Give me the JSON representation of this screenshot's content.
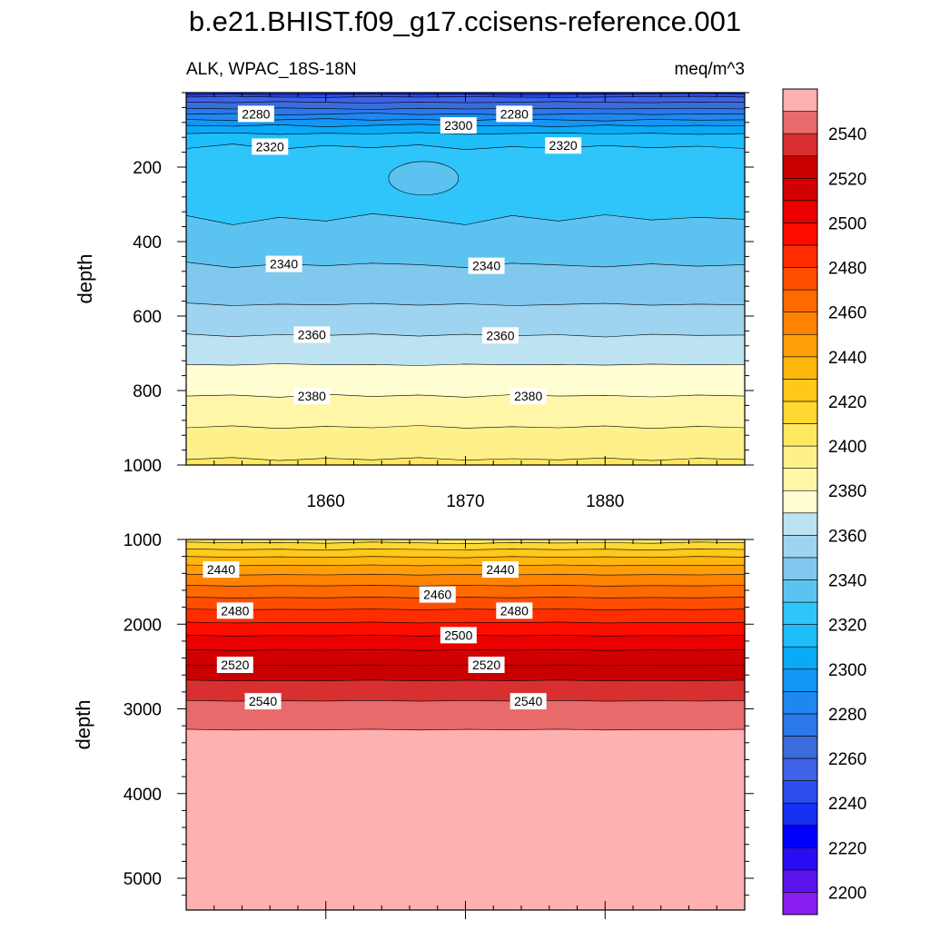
{
  "chart_data": {
    "type": "heatmap",
    "subtype": "filled-contour time-depth section (two panels, shared colorbar)",
    "title": "b.e21.BHIST.f09_g17.ccisens-reference.001",
    "left_subtitle": "ALK, WPAC_18S-18N",
    "right_subtitle": "meq/m^3",
    "ylabel": "depth",
    "x_range": [
      1850,
      1890
    ],
    "x_ticks": [
      1860,
      1870,
      1880
    ],
    "x_minor_step": 2,
    "panels": [
      {
        "name": "upper",
        "ylim": [
          0,
          1000
        ],
        "y_ticks": [
          200,
          400,
          600,
          800,
          1000
        ],
        "y_tick_labels": [
          "200",
          "400",
          "600",
          "800",
          "1000"
        ],
        "y_minor_step": 40,
        "x_tick_labels": [
          "1860",
          "1870",
          "1880"
        ],
        "contours": [
          {
            "level": 2240,
            "depths": [
              6,
              4,
              6,
              5,
              3,
              5,
              4,
              6,
              5,
              4,
              3,
              2,
              3
            ]
          },
          {
            "level": 2250,
            "depths": [
              12,
              10,
              12,
              13,
              11,
              12,
              11,
              12,
              13,
              12,
              11,
              10,
              12
            ]
          },
          {
            "level": 2260,
            "depths": [
              25,
              27,
              24,
              26,
              28,
              25,
              27,
              26,
              24,
              26,
              27,
              25,
              26
            ]
          },
          {
            "level": 2270,
            "depths": [
              42,
              44,
              41,
              43,
              45,
              42,
              44,
              43,
              42,
              44,
              43,
              42,
              44
            ]
          },
          {
            "level": 2280,
            "depths": [
              58,
              56,
              60,
              58,
              55,
              59,
              57,
              60,
              58,
              56,
              59,
              57,
              58
            ]
          },
          {
            "level": 2290,
            "depths": [
              72,
              75,
              73,
              70,
              74,
              72,
              75,
              71,
              73,
              76,
              72,
              74,
              73
            ]
          },
          {
            "level": 2300,
            "depths": [
              88,
              90,
              86,
              92,
              88,
              85,
              90,
              88,
              92,
              87,
              90,
              88,
              89
            ]
          },
          {
            "level": 2310,
            "depths": [
              110,
              108,
              112,
              109,
              111,
              107,
              112,
              110,
              108,
              111,
              109,
              112,
              110
            ]
          },
          {
            "level": 2320,
            "depths": [
              150,
              138,
              152,
              142,
              148,
              140,
              153,
              145,
              150,
              142,
              148,
              144,
              150
            ]
          },
          {
            "level": 2330,
            "depths": [
              330,
              355,
              335,
              345,
              325,
              338,
              355,
              330,
              345,
              328,
              342,
              335,
              340
            ]
          },
          {
            "level": 2340,
            "depths": [
              455,
              470,
              460,
              465,
              458,
              462,
              470,
              458,
              463,
              468,
              460,
              466,
              462
            ]
          },
          {
            "level": 2350,
            "depths": [
              565,
              572,
              568,
              570,
              566,
              571,
              567,
              572,
              569,
              566,
              571,
              568,
              570
            ]
          },
          {
            "level": 2360,
            "depths": [
              648,
              655,
              650,
              652,
              648,
              654,
              649,
              653,
              650,
              656,
              649,
              652,
              651
            ]
          },
          {
            "level": 2370,
            "depths": [
              730,
              732,
              728,
              731,
              730,
              733,
              729,
              731,
              730,
              732,
              729,
              731,
              730
            ]
          },
          {
            "level": 2380,
            "depths": [
              815,
              812,
              818,
              810,
              816,
              812,
              818,
              811,
              815,
              813,
              817,
              812,
              815
            ]
          },
          {
            "level": 2390,
            "depths": [
              900,
              895,
              902,
              896,
              900,
              894,
              901,
              897,
              900,
              895,
              902,
              896,
              900
            ]
          },
          {
            "level": 2400,
            "depths": [
              985,
              980,
              988,
              982,
              986,
              980,
              987,
              983,
              986,
              981,
              988,
              982,
              985
            ]
          }
        ],
        "bubble": {
          "level_inside": 2330,
          "x_center": 1867,
          "depth_center": 230,
          "x_halfwidth": 2.5,
          "depth_halfheight": 45
        },
        "contour_labels": [
          {
            "text": "2280",
            "x": 1855,
            "depth": 57
          },
          {
            "text": "2300",
            "x": 1869.5,
            "depth": 88
          },
          {
            "text": "2280",
            "x": 1873.5,
            "depth": 57
          },
          {
            "text": "2320",
            "x": 1856,
            "depth": 145
          },
          {
            "text": "2320",
            "x": 1877,
            "depth": 142
          },
          {
            "text": "2340",
            "x": 1857,
            "depth": 460
          },
          {
            "text": "2340",
            "x": 1871.5,
            "depth": 465
          },
          {
            "text": "2360",
            "x": 1859,
            "depth": 650
          },
          {
            "text": "2360",
            "x": 1872.5,
            "depth": 652
          },
          {
            "text": "2380",
            "x": 1859,
            "depth": 815
          },
          {
            "text": "2380",
            "x": 1874.5,
            "depth": 815
          }
        ]
      },
      {
        "name": "lower",
        "ylim": [
          1000,
          5375
        ],
        "y_ticks": [
          1000,
          2000,
          3000,
          4000,
          5000
        ],
        "y_tick_labels": [
          "1000",
          "2000",
          "3000",
          "4000",
          "5000"
        ],
        "y_minor_step": 200,
        "contours": [
          {
            "level": 2410,
            "depths": [
              1030,
              1040,
              1035,
              1045,
              1030,
              1040,
              1050,
              1035,
              1042,
              1038,
              1045,
              1030,
              1040
            ]
          },
          {
            "level": 2420,
            "depths": [
              1110,
              1120,
              1115,
              1125,
              1110,
              1118,
              1122,
              1112,
              1120,
              1115,
              1125,
              1110,
              1118
            ]
          },
          {
            "level": 2430,
            "depths": [
              1200,
              1210,
              1205,
              1212,
              1200,
              1208,
              1215,
              1202,
              1210,
              1205,
              1212,
              1200,
              1208
            ]
          },
          {
            "level": 2440,
            "depths": [
              1300,
              1310,
              1305,
              1308,
              1300,
              1310,
              1302,
              1308,
              1300,
              1310,
              1305,
              1308,
              1302
            ]
          },
          {
            "level": 2450,
            "depths": [
              1410,
              1420,
              1415,
              1418,
              1410,
              1420,
              1412,
              1418,
              1410,
              1420,
              1415,
              1418,
              1412
            ]
          },
          {
            "level": 2460,
            "depths": [
              1540,
              1550,
              1545,
              1548,
              1540,
              1550,
              1542,
              1548,
              1540,
              1550,
              1545,
              1548,
              1542
            ]
          },
          {
            "level": 2470,
            "depths": [
              1680,
              1690,
              1685,
              1688,
              1680,
              1690,
              1682,
              1688,
              1680,
              1690,
              1685,
              1688,
              1682
            ]
          },
          {
            "level": 2480,
            "depths": [
              1820,
              1830,
              1825,
              1828,
              1820,
              1830,
              1822,
              1828,
              1820,
              1830,
              1825,
              1828,
              1822
            ]
          },
          {
            "level": 2490,
            "depths": [
              1975,
              1985,
              1980,
              1982,
              1975,
              1985,
              1978,
              1982,
              1975,
              1985,
              1980,
              1982,
              1978
            ]
          },
          {
            "level": 2500,
            "depths": [
              2130,
              2140,
              2135,
              2138,
              2130,
              2140,
              2132,
              2138,
              2130,
              2140,
              2135,
              2138,
              2132
            ]
          },
          {
            "level": 2510,
            "depths": [
              2300,
              2310,
              2305,
              2308,
              2300,
              2310,
              2302,
              2308,
              2300,
              2310,
              2305,
              2308,
              2302
            ]
          },
          {
            "level": 2520,
            "depths": [
              2480,
              2490,
              2485,
              2488,
              2480,
              2490,
              2482,
              2488,
              2480,
              2490,
              2485,
              2488,
              2482
            ]
          },
          {
            "level": 2530,
            "depths": [
              2660,
              2670,
              2665,
              2668,
              2660,
              2670,
              2662,
              2668,
              2660,
              2670,
              2665,
              2668,
              2662
            ]
          },
          {
            "level": 2540,
            "depths": [
              2900,
              2910,
              2905,
              2908,
              2900,
              2910,
              2902,
              2908,
              2900,
              2910,
              2905,
              2908,
              2902
            ]
          },
          {
            "level": 2550,
            "depths": [
              3240,
              3250,
              3245,
              3248,
              3240,
              3250,
              3242,
              3248,
              3240,
              3250,
              3245,
              3248,
              3242
            ]
          }
        ],
        "contour_labels": [
          {
            "text": "2440",
            "x": 1852.5,
            "depth": 1355
          },
          {
            "text": "2440",
            "x": 1872.5,
            "depth": 1355
          },
          {
            "text": "2460",
            "x": 1868,
            "depth": 1650
          },
          {
            "text": "2480",
            "x": 1853.5,
            "depth": 1840
          },
          {
            "text": "2480",
            "x": 1873.5,
            "depth": 1840
          },
          {
            "text": "2500",
            "x": 1869.5,
            "depth": 2130
          },
          {
            "text": "2520",
            "x": 1853.5,
            "depth": 2480
          },
          {
            "text": "2520",
            "x": 1871.5,
            "depth": 2480
          },
          {
            "text": "2540",
            "x": 1855.5,
            "depth": 2910
          },
          {
            "text": "2540",
            "x": 1874.5,
            "depth": 2910
          }
        ]
      }
    ],
    "colorbar": {
      "levels": [
        2200,
        2210,
        2220,
        2230,
        2240,
        2250,
        2260,
        2270,
        2280,
        2290,
        2300,
        2310,
        2320,
        2330,
        2340,
        2350,
        2360,
        2370,
        2380,
        2390,
        2400,
        2410,
        2420,
        2430,
        2440,
        2450,
        2460,
        2470,
        2480,
        2490,
        2500,
        2510,
        2520,
        2530,
        2540,
        2550
      ],
      "tick_labels": [
        "2200",
        "2220",
        "2240",
        "2260",
        "2280",
        "2300",
        "2320",
        "2340",
        "2360",
        "2380",
        "2400",
        "2420",
        "2440",
        "2460",
        "2480",
        "2500",
        "2520",
        "2540"
      ],
      "colors": [
        "#8a1df0",
        "#5c14ec",
        "#2a0cf2",
        "#0000fa",
        "#1430f0",
        "#2b4eed",
        "#3d63e6",
        "#3b6cdc",
        "#2a78ea",
        "#1e88f0",
        "#1496f6",
        "#0aaaf6",
        "#1ebefa",
        "#2fc5fa",
        "#5cc3f0",
        "#80c8ee",
        "#9ed4f0",
        "#bde3f2",
        "#fffdd2",
        "#fff6a8",
        "#fff08a",
        "#ffe860",
        "#ffd832",
        "#ffc81a",
        "#ffb60e",
        "#ff9e08",
        "#ff8200",
        "#ff6a00",
        "#ff4e00",
        "#ff2e00",
        "#ff0c00",
        "#ea0000",
        "#d20000",
        "#c80000",
        "#d83030",
        "#e86a6a",
        "#ffb0b0"
      ]
    }
  }
}
